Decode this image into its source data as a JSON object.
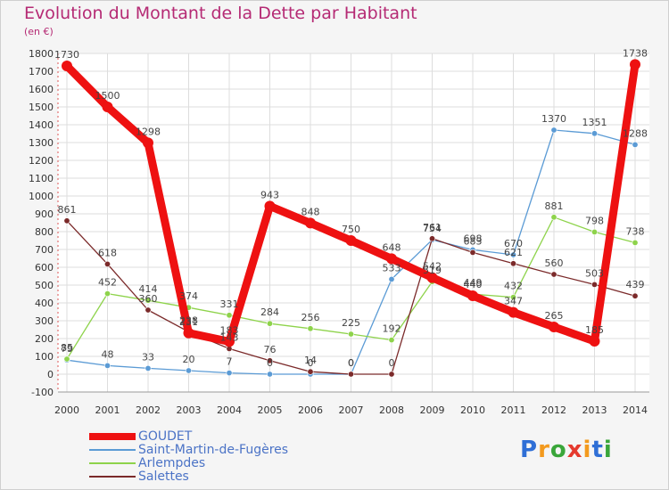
{
  "header": {
    "title": "Evolution du Montant de la Dette par Habitant",
    "unit": "(en €)"
  },
  "logo": {
    "text": "Proxiti",
    "colors": [
      "#2f6fd6",
      "#f39a1e",
      "#3aa63a",
      "#e53a2e",
      "#f39a1e",
      "#2f6fd6",
      "#3aa63a"
    ]
  },
  "chart_data": {
    "type": "line",
    "title": "Evolution du Montant de la Dette par Habitant",
    "ylabel": "(en €)",
    "xlabel": "",
    "x": [
      "2000",
      "2001",
      "2002",
      "2003",
      "2004",
      "2005",
      "2006",
      "2007",
      "2008",
      "2009",
      "2010",
      "2011",
      "2012",
      "2013",
      "2014"
    ],
    "ylim": [
      -100,
      1800
    ],
    "yticks": [
      "-100",
      "0",
      "100",
      "200",
      "300",
      "400",
      "500",
      "600",
      "700",
      "800",
      "900",
      "1000",
      "1100",
      "1200",
      "1300",
      "1400",
      "1500",
      "1600",
      "1700",
      "1800"
    ],
    "grid": true,
    "legend_position": "bottom-left",
    "series": [
      {
        "name": "GOUDET",
        "color": "#ee1111",
        "values": [
          1730,
          1500,
          1298,
          231,
          183,
          943,
          848,
          750,
          648,
          542,
          440,
          347,
          265,
          185,
          1738
        ],
        "labels": [
          "1730",
          "1500",
          "1298",
          "231",
          "183",
          "943",
          "848",
          "750",
          "648",
          "542",
          "440",
          "347",
          "265",
          "185",
          "1738"
        ]
      },
      {
        "name": "Saint-Martin-de-Fugères",
        "color": "#5b9bd5",
        "values": [
          79,
          48,
          33,
          20,
          7,
          0,
          0,
          0,
          533,
          754,
          698,
          670,
          1370,
          1351,
          1288
        ],
        "labels": [
          "79",
          "48",
          "33",
          "20",
          "7",
          "0",
          "0",
          "0",
          "533",
          "754",
          "698",
          "670",
          "1370",
          "1351",
          "1288"
        ]
      },
      {
        "name": "Arlempdes",
        "color": "#8ed34b",
        "values": [
          85,
          452,
          414,
          374,
          331,
          284,
          256,
          225,
          192,
          519,
          449,
          432,
          881,
          798,
          738
        ],
        "labels": [
          "85",
          "452",
          "414",
          "374",
          "331",
          "284",
          "256",
          "225",
          "192",
          "519",
          "449",
          "432",
          "881",
          "798",
          "738"
        ]
      },
      {
        "name": "Salettes",
        "color": "#7b2a2a",
        "values": [
          861,
          618,
          360,
          238,
          143,
          76,
          14,
          0,
          0,
          761,
          683,
          621,
          560,
          503,
          439
        ],
        "labels": [
          "861",
          "618",
          "360",
          "238",
          "143",
          "76",
          "14",
          "0",
          "0",
          "761",
          "683",
          "621",
          "560",
          "503",
          "439"
        ]
      }
    ]
  }
}
